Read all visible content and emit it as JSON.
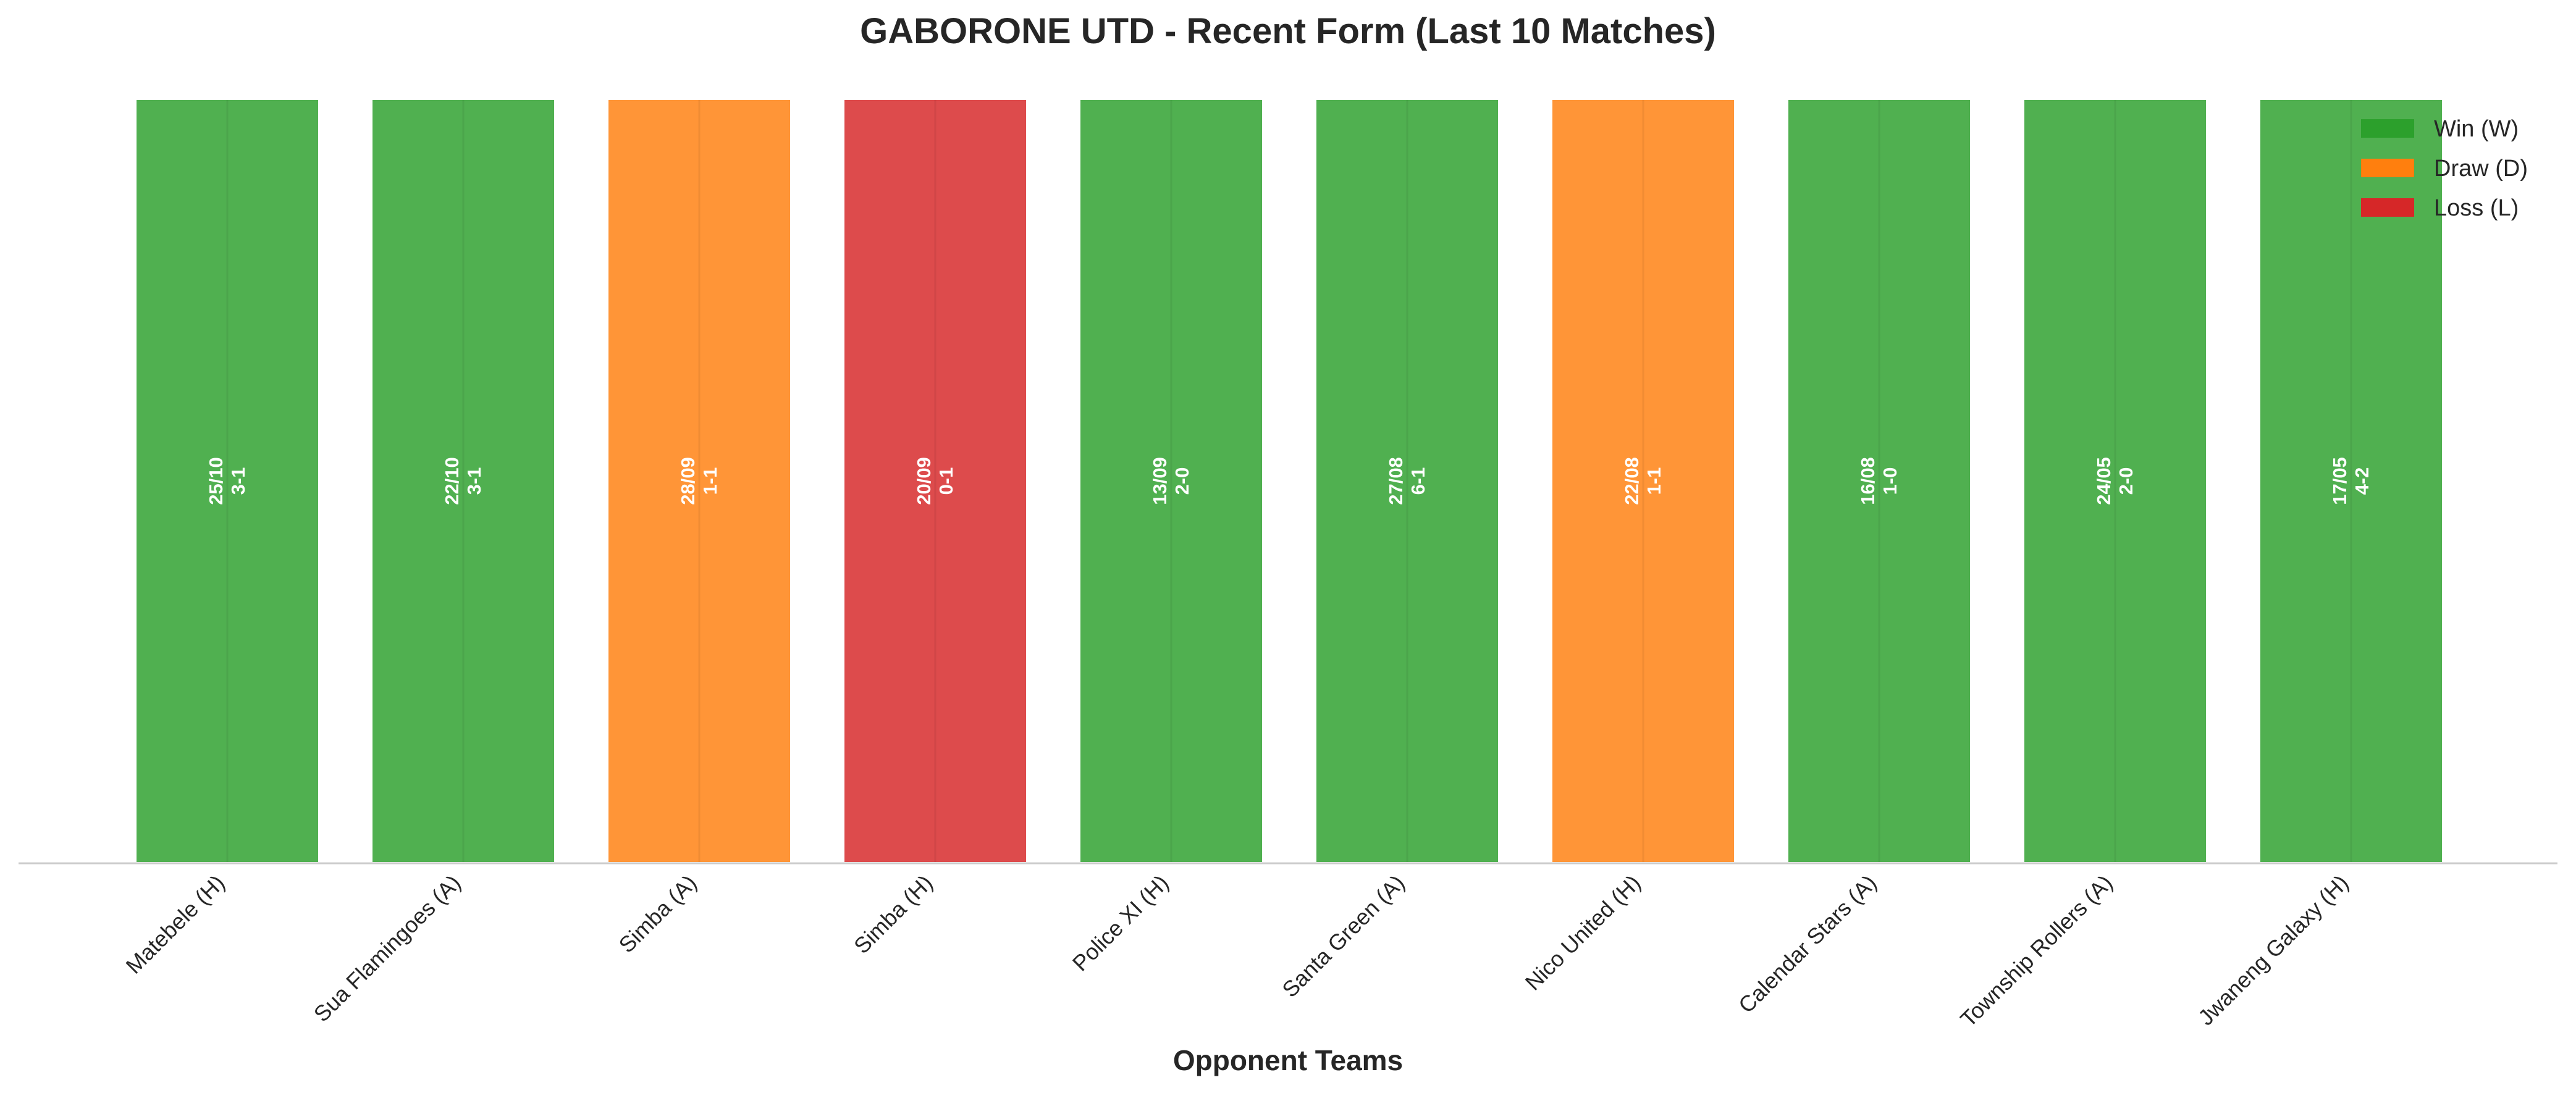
{
  "chart_data": {
    "type": "bar",
    "title": "GABORONE UTD - Recent Form (Last 10 Matches)",
    "xlabel": "Opponent Teams",
    "ylabel": "",
    "ylim": [
      0,
      1
    ],
    "grid": false,
    "legend_position": "top-right",
    "categories": [
      "Matebele (H)",
      "Sua Flamingoes (A)",
      "Simba (A)",
      "Simba (H)",
      "Police XI (H)",
      "Santa Green (A)",
      "Nico United (H)",
      "Calendar Stars (A)",
      "Township Rollers (A)",
      "Jwaneng Galaxy (H)"
    ],
    "values": [
      1,
      1,
      1,
      1,
      1,
      1,
      1,
      1,
      1,
      1
    ],
    "results": [
      "W",
      "W",
      "D",
      "L",
      "W",
      "W",
      "D",
      "W",
      "W",
      "W"
    ],
    "dates": [
      "25/10",
      "22/10",
      "28/09",
      "20/09",
      "13/09",
      "27/08",
      "22/08",
      "16/08",
      "24/05",
      "17/05"
    ],
    "scores": [
      "3-1",
      "3-1",
      "1-1",
      "0-1",
      "2-0",
      "6-1",
      "1-1",
      "1-0",
      "2-0",
      "4-2"
    ],
    "legend": [
      {
        "key": "W",
        "label": "Win (W)",
        "color": "#2ca02c"
      },
      {
        "key": "D",
        "label": "Draw (D)",
        "color": "#ff7f0e"
      },
      {
        "key": "L",
        "label": "Loss (L)",
        "color": "#d62728"
      }
    ]
  }
}
